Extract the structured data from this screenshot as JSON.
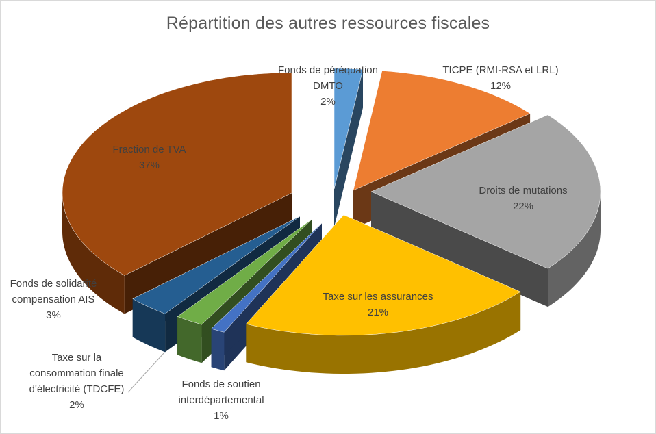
{
  "chart_data": {
    "type": "pie",
    "style": "3d-exploded",
    "title": "Répartition des autres ressources fiscales",
    "slices": [
      {
        "id": "dmto",
        "label": "Fonds de péréquation DMTO",
        "percent_label": "2%",
        "value": 2,
        "color": "#5b9bd5"
      },
      {
        "id": "ticpe",
        "label": "TICPE (RMI-RSA et LRL)",
        "percent_label": "12%",
        "value": 12,
        "color": "#ed7d31"
      },
      {
        "id": "mutations",
        "label": "Droits de mutations",
        "percent_label": "22%",
        "value": 22,
        "color": "#a5a5a5"
      },
      {
        "id": "assurances",
        "label": "Taxe sur les assurances",
        "percent_label": "21%",
        "value": 21,
        "color": "#ffc000"
      },
      {
        "id": "soutien",
        "label": "Fonds de soutien interdépartemental",
        "percent_label": "1%",
        "value": 1,
        "color": "#4472c4"
      },
      {
        "id": "tdcfe",
        "label": "Taxe sur la consommation finale d'électricité (TDCFE)",
        "percent_label": "2%",
        "value": 2,
        "color": "#70ad47"
      },
      {
        "id": "ais",
        "label": "Fonds de solidarité compensation AIS",
        "percent_label": "3%",
        "value": 3,
        "color": "#255e91"
      },
      {
        "id": "tva",
        "label": "Fraction de TVA",
        "percent_label": "37%",
        "value": 37,
        "color": "#9e480e"
      }
    ]
  },
  "labels": {
    "dmto": [
      "Fonds de péréquation",
      "DMTO",
      "2%"
    ],
    "ticpe": [
      "TICPE (RMI-RSA et LRL)",
      "12%"
    ],
    "mutations": [
      "Droits de mutations",
      "22%"
    ],
    "assurances": [
      "Taxe sur les assurances",
      "21%"
    ],
    "soutien": [
      "Fonds de soutien",
      "interdépartemental",
      "1%"
    ],
    "tdcfe": [
      "Taxe sur la",
      "consommation finale",
      "d'électricité  (TDCFE)",
      "2%"
    ],
    "ais": [
      "Fonds de solidarité",
      "compensation AIS",
      "3%"
    ],
    "tva": [
      "Fraction de TVA",
      "37%"
    ]
  }
}
